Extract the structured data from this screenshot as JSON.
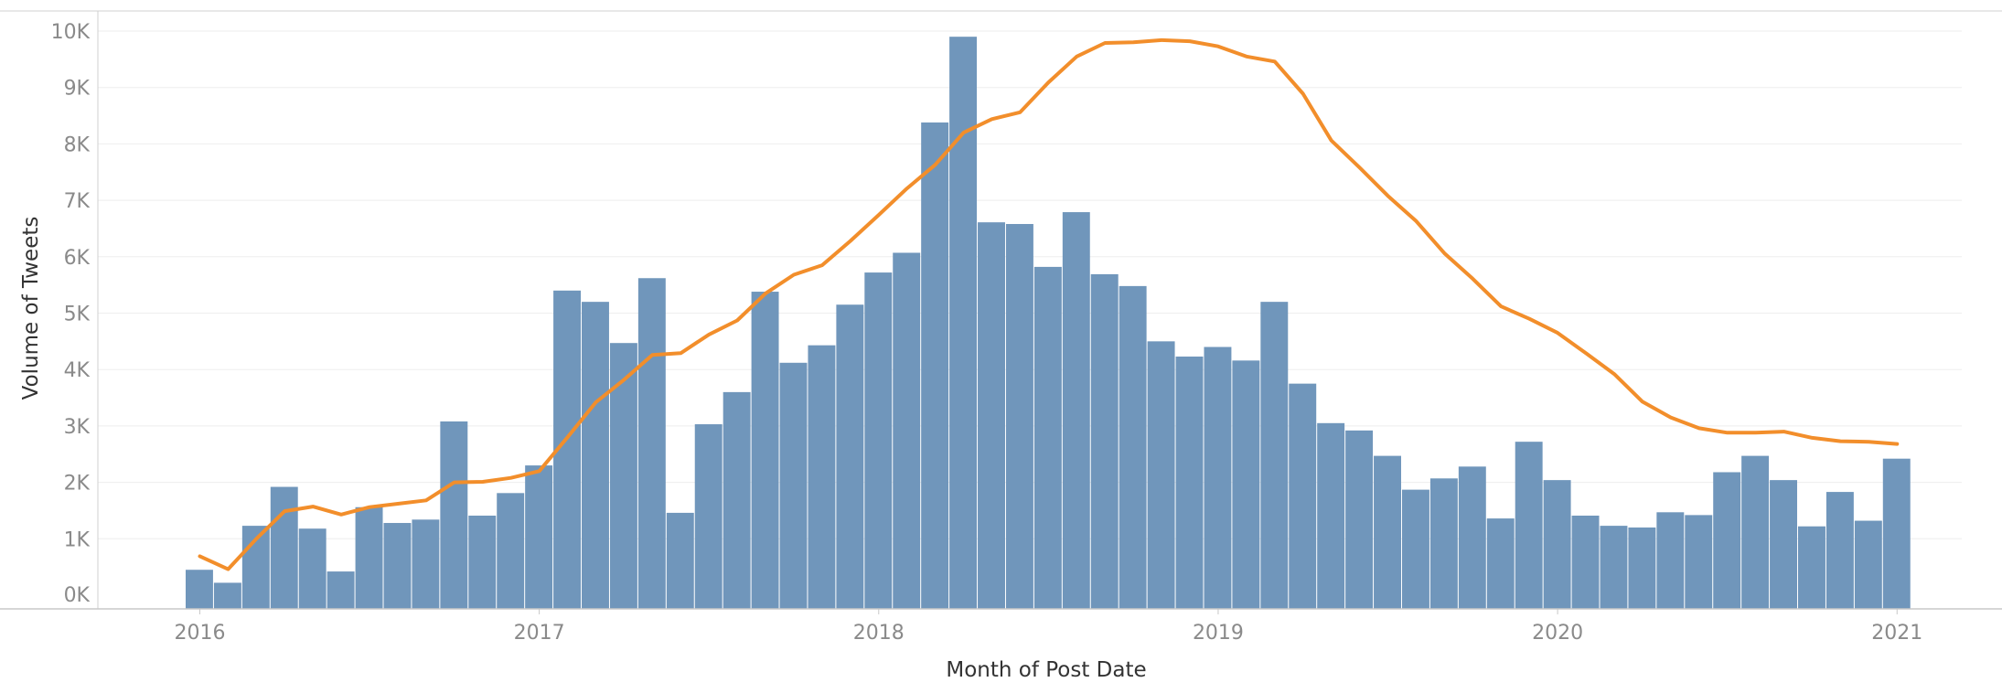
{
  "chart_data": {
    "type": "bar",
    "xlabel": "Month of Post Date",
    "ylabel": "Volume of Tweets",
    "ylim": [
      0,
      10000
    ],
    "y_ticks": [
      {
        "value": 0,
        "label": "0K"
      },
      {
        "value": 1000,
        "label": "1K"
      },
      {
        "value": 2000,
        "label": "2K"
      },
      {
        "value": 3000,
        "label": "3K"
      },
      {
        "value": 4000,
        "label": "4K"
      },
      {
        "value": 5000,
        "label": "5K"
      },
      {
        "value": 6000,
        "label": "6K"
      },
      {
        "value": 7000,
        "label": "7K"
      },
      {
        "value": 8000,
        "label": "8K"
      },
      {
        "value": 9000,
        "label": "9K"
      },
      {
        "value": 10000,
        "label": "10K"
      }
    ],
    "x_ticks": [
      "2016",
      "2017",
      "2018",
      "2019",
      "2020",
      "2021"
    ],
    "grid": "horizontal",
    "colors": {
      "bars": "#7096bb",
      "trend": "#f28e2b"
    },
    "categories": [
      "2016-01",
      "2016-02",
      "2016-03",
      "2016-04",
      "2016-05",
      "2016-06",
      "2016-07",
      "2016-08",
      "2016-09",
      "2016-10",
      "2016-11",
      "2016-12",
      "2017-01",
      "2017-02",
      "2017-03",
      "2017-04",
      "2017-05",
      "2017-06",
      "2017-07",
      "2017-08",
      "2017-09",
      "2017-10",
      "2017-11",
      "2017-12",
      "2018-01",
      "2018-02",
      "2018-03",
      "2018-04",
      "2018-05",
      "2018-06",
      "2018-07",
      "2018-08",
      "2018-09",
      "2018-10",
      "2018-11",
      "2018-12",
      "2019-01",
      "2019-02",
      "2019-03",
      "2019-04",
      "2019-05",
      "2019-06",
      "2019-07",
      "2019-08",
      "2019-09",
      "2019-10",
      "2019-11",
      "2019-12",
      "2020-01",
      "2020-02",
      "2020-03",
      "2020-04",
      "2020-05",
      "2020-06",
      "2020-07",
      "2020-08",
      "2020-09",
      "2020-10",
      "2020-11",
      "2020-12",
      "2021-01"
    ],
    "series": [
      {
        "kind": "bar",
        "values": [
          450,
          220,
          1230,
          1920,
          1180,
          420,
          1560,
          1280,
          1340,
          3080,
          1410,
          1810,
          2300,
          5400,
          5200,
          4470,
          5620,
          1460,
          3030,
          3600,
          5380,
          4120,
          4430,
          5150,
          5720,
          6070,
          8380,
          9900,
          6610,
          6580,
          5820,
          6790,
          5690,
          5480,
          4500,
          4230,
          4400,
          4160,
          5200,
          3750,
          3050,
          2920,
          2470,
          1870,
          2070,
          2280,
          1360,
          2720,
          2040,
          1410,
          1230,
          1200,
          1470,
          1420,
          2180,
          2470,
          2040,
          1220,
          1830,
          1320,
          2420
        ]
      },
      {
        "kind": "line",
        "values": [
          690,
          460,
          1000,
          1490,
          1570,
          1430,
          1560,
          1620,
          1680,
          2000,
          2010,
          2080,
          2200,
          2800,
          3420,
          3820,
          4260,
          4290,
          4620,
          4870,
          5350,
          5680,
          5850,
          6280,
          6740,
          7210,
          7630,
          8200,
          8440,
          8560,
          9090,
          9550,
          9790,
          9800,
          9840,
          9820,
          9730,
          9550,
          9460,
          8890,
          8060,
          7580,
          7080,
          6630,
          6060,
          5610,
          5120,
          4900,
          4650,
          4290,
          3920,
          3430,
          3150,
          2960,
          2880,
          2880,
          2900,
          2790,
          2730,
          2720,
          2680
        ]
      }
    ]
  }
}
